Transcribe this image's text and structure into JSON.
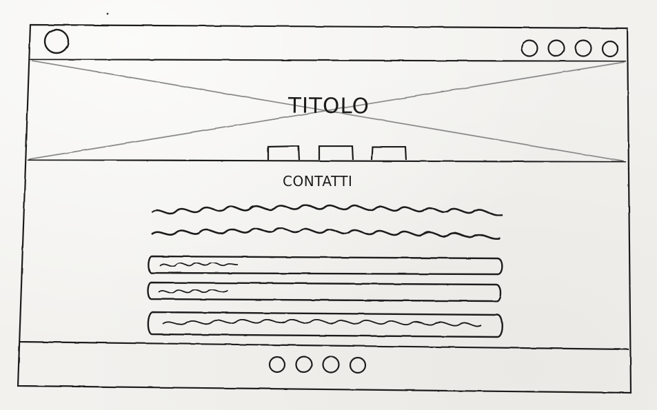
{
  "hero": {
    "title": "TITOLO"
  },
  "contact_section": {
    "title": "CONTATTI"
  },
  "header": {
    "logo_icon": "circle-logo-icon",
    "nav_icons": [
      "circle-icon",
      "circle-icon",
      "circle-icon",
      "circle-icon"
    ]
  },
  "footer": {
    "social_icons": [
      "circle-icon",
      "circle-icon",
      "circle-icon",
      "circle-icon"
    ]
  },
  "colors": {
    "ink": "#1b1b1b",
    "pencil": "#9a9a9a",
    "paper": "#f2f1ee"
  }
}
